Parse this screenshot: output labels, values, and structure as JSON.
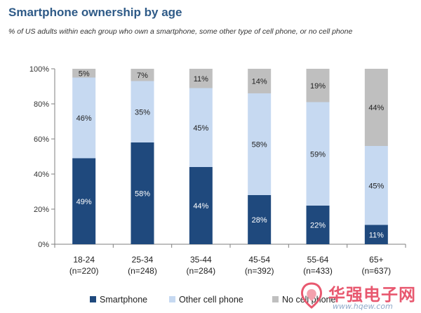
{
  "chart_data": {
    "type": "bar",
    "stacked": true,
    "title": "Smartphone ownership by age",
    "subtitle": "% of US adults within each group who own a smartphone, some other type of cell phone, or no cell phone",
    "categories": [
      "18-24\n(n=220)",
      "25-34\n(n=248)",
      "35-44\n(n=284)",
      "45-54\n(n=392)",
      "55-64\n(n=433)",
      "65+\n(n=637)"
    ],
    "series": [
      {
        "name": "Smartphone",
        "values": [
          49,
          58,
          44,
          28,
          22,
          11
        ],
        "color": "#1f497d",
        "label_color": "#ffffff"
      },
      {
        "name": "Other cell phone",
        "values": [
          46,
          35,
          45,
          58,
          59,
          45
        ],
        "color": "#c6d9f1",
        "label_color": "#222222"
      },
      {
        "name": "No cell phone",
        "values": [
          5,
          7,
          11,
          14,
          19,
          44
        ],
        "color": "#bfbfbf",
        "label_color": "#222222"
      }
    ],
    "ylim": [
      0,
      100
    ],
    "yticks": [
      "0%",
      "20%",
      "40%",
      "60%",
      "80%",
      "100%"
    ],
    "legend": "bottom",
    "grid": false
  },
  "watermark": {
    "text": "华强电子网",
    "url": "www.hqew.com"
  }
}
